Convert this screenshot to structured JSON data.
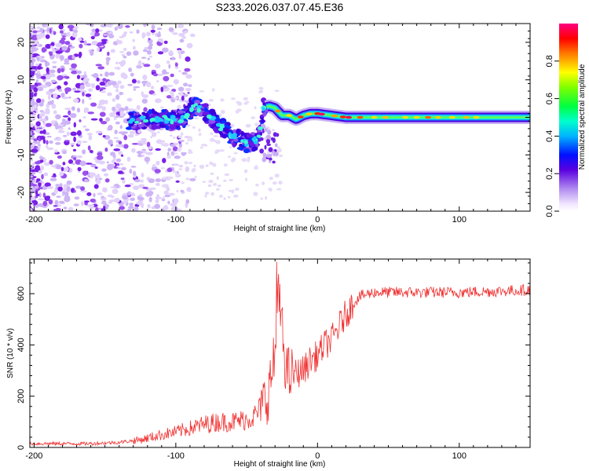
{
  "title": "S233.2026.037.07.45.E36",
  "chart_data": [
    {
      "type": "heatmap",
      "xlabel": "Height of straight line (km)",
      "ylabel": "Frequency (Hz)",
      "xlim": [
        -203,
        150
      ],
      "ylim": [
        -25,
        25
      ],
      "xticks": [
        -200,
        -100,
        0,
        100
      ],
      "xtick_labels": [
        "-200",
        "-100",
        "0",
        "100"
      ],
      "yticks": [
        -20,
        -10,
        0,
        10,
        20
      ],
      "ytick_labels": [
        "-20",
        "-10",
        "0",
        "10",
        "20"
      ],
      "colorbar": {
        "label": "Normalized spectral amplitude",
        "range": [
          0,
          1
        ],
        "ticks": [
          0.0,
          0.2,
          0.4,
          0.6,
          0.8
        ],
        "tick_labels": [
          "0.0",
          "0.2",
          "0.4",
          "0.6",
          "0.8"
        ]
      },
      "ridge": {
        "x": [
          -133,
          -120,
          -105,
          -95,
          -88,
          -80,
          -70,
          -60,
          -50,
          -42,
          -38,
          -34,
          -30,
          -25,
          -20,
          -15,
          -10,
          -5,
          0,
          10,
          20,
          40,
          60,
          80,
          100,
          120,
          150
        ],
        "freq": [
          -1,
          -0.5,
          -0.5,
          -0.5,
          3,
          2,
          -2,
          -5,
          -7,
          -6,
          2.5,
          3,
          2.5,
          0.5,
          0.5,
          -0.5,
          0.5,
          1,
          1,
          0.5,
          0,
          0,
          0,
          0,
          0,
          0,
          0
        ]
      }
    },
    {
      "type": "line",
      "xlabel": "Height of straight line (km)",
      "ylabel": "SNR (10 * v/v)",
      "xlim": [
        -203,
        150
      ],
      "ylim": [
        0,
        735
      ],
      "xticks": [
        -200,
        -100,
        0,
        100
      ],
      "xtick_labels": [
        "-200",
        "-100",
        "0",
        "100"
      ],
      "yticks": [
        0,
        200,
        400,
        600
      ],
      "ytick_labels": [
        "0",
        "200",
        "400",
        "600"
      ],
      "series": [
        {
          "name": "SNR",
          "color": "#f03030",
          "x": [
            -203,
            -180,
            -160,
            -140,
            -125,
            -110,
            -100,
            -90,
            -80,
            -70,
            -60,
            -50,
            -45,
            -40,
            -35,
            -30,
            -28,
            -25,
            -22,
            -20,
            -15,
            -10,
            -5,
            0,
            5,
            10,
            15,
            20,
            25,
            30,
            40,
            50,
            70,
            100,
            130,
            150
          ],
          "values": [
            15,
            15,
            15,
            20,
            30,
            50,
            60,
            75,
            90,
            100,
            100,
            110,
            120,
            150,
            210,
            350,
            600,
            450,
            300,
            280,
            290,
            300,
            340,
            360,
            400,
            420,
            470,
            520,
            560,
            590,
            605,
            605,
            605,
            605,
            610,
            615
          ]
        }
      ]
    }
  ]
}
